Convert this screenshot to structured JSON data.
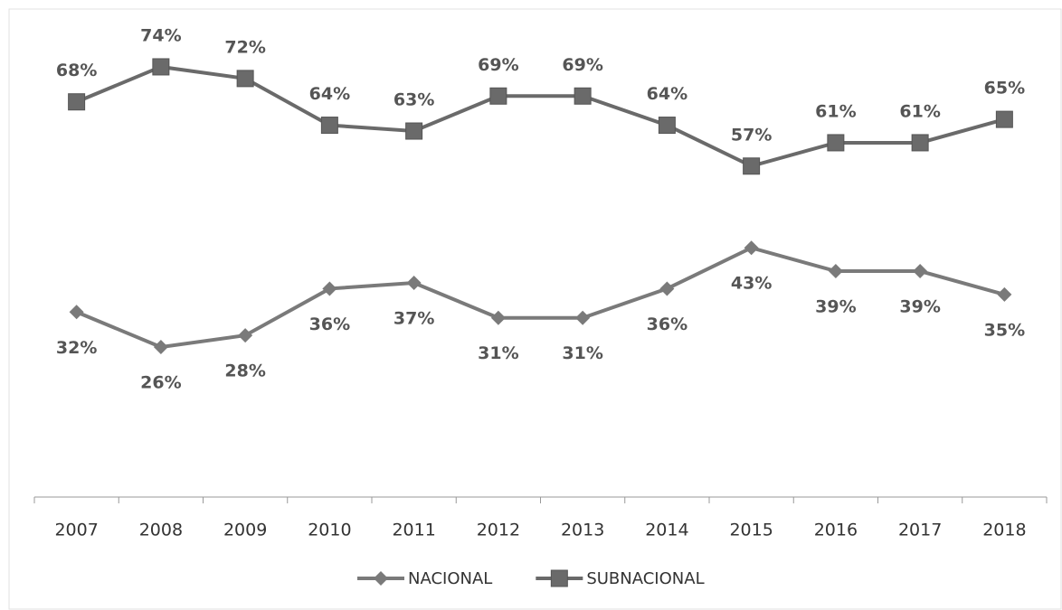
{
  "chart_data": {
    "type": "line",
    "categories": [
      "2007",
      "2008",
      "2009",
      "2010",
      "2011",
      "2012",
      "2013",
      "2014",
      "2015",
      "2016",
      "2017",
      "2018"
    ],
    "series": [
      {
        "name": "NACIONAL",
        "color": "#7a7a7a",
        "marker": "diamond",
        "values": [
          32,
          26,
          28,
          36,
          37,
          31,
          31,
          36,
          43,
          39,
          39,
          35
        ],
        "value_labels": [
          "32%",
          "26%",
          "28%",
          "36%",
          "37%",
          "31%",
          "31%",
          "36%",
          "43%",
          "39%",
          "39%",
          "35%"
        ]
      },
      {
        "name": "SUBNACIONAL",
        "color": "#6a6a6a",
        "marker": "square",
        "values": [
          68,
          74,
          72,
          64,
          63,
          69,
          69,
          64,
          57,
          61,
          61,
          65
        ],
        "value_labels": [
          "68%",
          "74%",
          "72%",
          "64%",
          "63%",
          "69%",
          "69%",
          "64%",
          "57%",
          "61%",
          "61%",
          "65%"
        ]
      }
    ],
    "legend": "bottom"
  }
}
